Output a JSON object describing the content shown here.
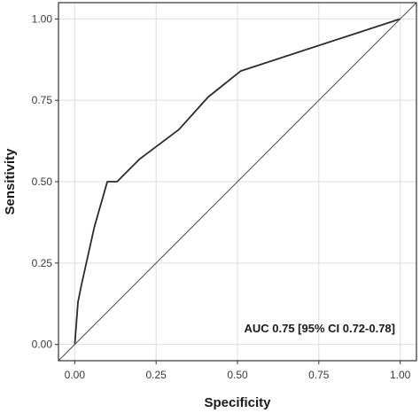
{
  "chart_data": {
    "type": "line",
    "xlabel": "Specificity",
    "ylabel": "Sensitivity",
    "xlim": [
      -0.05,
      1.05
    ],
    "ylim": [
      -0.05,
      1.05
    ],
    "x_ticks": [
      0,
      0.25,
      0.5,
      0.75,
      1
    ],
    "y_ticks": [
      0,
      0.25,
      0.5,
      0.75,
      1
    ],
    "x_tick_labels": [
      "0.00",
      "0.25",
      "0.50",
      "0.75",
      "1.00"
    ],
    "y_tick_labels": [
      "0.00",
      "0.25",
      "0.50",
      "0.75",
      "1.00"
    ],
    "grid": true,
    "series": [
      {
        "x": [
          0,
          0.01,
          0.02,
          0.06,
          0.1,
          0.13,
          0.2,
          0.32,
          0.41,
          0.51,
          1.0
        ],
        "y": [
          0,
          0.13,
          0.18,
          0.36,
          0.5,
          0.5,
          0.57,
          0.66,
          0.76,
          0.84,
          1.0
        ],
        "color": "#2b2b2b"
      },
      {
        "x": [
          -0.05,
          1.05
        ],
        "y": [
          -0.05,
          1.05
        ],
        "color": "#555555"
      }
    ],
    "annotation": "AUC 0.75 [95% CI 0.72-0.78]"
  }
}
